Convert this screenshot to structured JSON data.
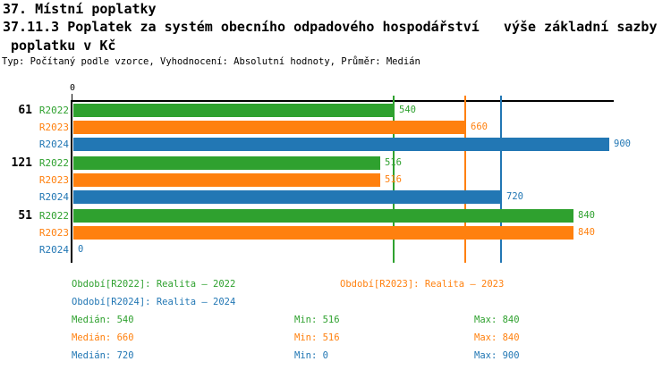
{
  "header": {
    "title_line1": "37. Místní poplatky",
    "title_line2": "37.11.3 Poplatek za systém obecního odpadového hospodářství   výše základní sazby",
    "title_line3": " poplatku v Kč",
    "meta_line": "Typ: Počítaný podle vzorce, Vyhodnocení: Absolutní hodnoty, Průměr: Medián"
  },
  "colors": {
    "R2022": "#2FA12F",
    "R2023": "#FF800E",
    "R2024": "#2277B4",
    "axis": "#000000",
    "background": "#FFFFFF"
  },
  "chart_data": {
    "type": "bar",
    "orientation": "horizontal",
    "value_axis": {
      "min": 0,
      "max": 900,
      "origin_tick_label": "0"
    },
    "series": [
      "R2022",
      "R2023",
      "R2024"
    ],
    "groups": [
      {
        "label": "61",
        "values": [
          540,
          660,
          900
        ]
      },
      {
        "label": "121",
        "values": [
          516,
          516,
          720
        ]
      },
      {
        "label": "51",
        "values": [
          840,
          840,
          0
        ]
      }
    ],
    "median_lines": [
      {
        "series": "R2022",
        "value": 540
      },
      {
        "series": "R2023",
        "value": 660
      },
      {
        "series": "R2024",
        "value": 720
      }
    ],
    "stats": [
      {
        "series": "R2022",
        "median": 540,
        "min": 516,
        "max": 840
      },
      {
        "series": "R2023",
        "median": 660,
        "min": 516,
        "max": 840
      },
      {
        "series": "R2024",
        "median": 720,
        "min": 0,
        "max": 900
      }
    ],
    "grid": false,
    "legend_position": "bottom"
  },
  "legend": {
    "entries": [
      {
        "series": "R2022",
        "label": "Období[R2022]: Realita – 2022",
        "row": 0,
        "col": 0
      },
      {
        "series": "R2023",
        "label": "Období[R2023]: Realita – 2023",
        "row": 0,
        "col": 1
      },
      {
        "series": "R2024",
        "label": "Období[R2024]: Realita – 2024",
        "row": 1,
        "col": 0
      }
    ],
    "stat_labels": {
      "median": "Medián",
      "min": "Min",
      "max": "Max"
    }
  }
}
